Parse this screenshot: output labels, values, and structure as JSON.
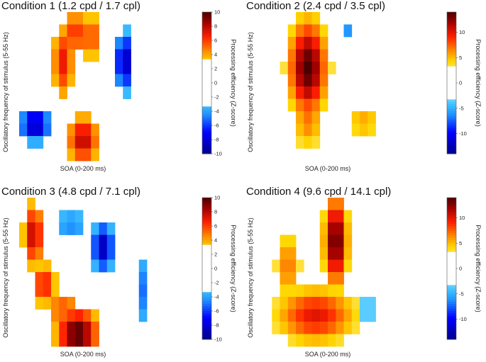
{
  "chart_data": [
    {
      "type": "heatmap",
      "title": "Condition 1 (1.2 cpd / 1.7 cpl)",
      "xlabel": "SOA (0-200 ms)",
      "ylabel": "Oscillatory frequency of stimulus (5-55 Hz)",
      "colorbar": {
        "label": "Processing efficiency (Z-score)",
        "ticks": [
          "10",
          "8",
          "6",
          "4",
          "2",
          "0",
          "-2",
          "-4",
          "-6",
          "-8",
          "-10"
        ],
        "min": -10,
        "max": 10,
        "threshold": 3.2
      },
      "grid": {
        "rows": 12,
        "cols": 16,
        "blobs": [
          {
            "r": 3.5,
            "c": 5,
            "rr": 3.5,
            "rc": 1.6,
            "v": 7
          },
          {
            "r": 1.2,
            "c": 6.5,
            "rr": 2.3,
            "rc": 1.8,
            "v": 6.5
          },
          {
            "r": 1.5,
            "c": 8.5,
            "rr": 2.3,
            "rc": 1.6,
            "v": 6
          },
          {
            "r": 9.8,
            "c": 7.5,
            "rr": 2.3,
            "rc": 2.3,
            "v": 8
          },
          {
            "r": 3.5,
            "c": 12.7,
            "rr": 2.7,
            "rc": 1.3,
            "v": -9
          },
          {
            "r": 8.6,
            "c": 1.5,
            "rr": 1.6,
            "rc": 2.2,
            "v": -9
          }
        ]
      }
    },
    {
      "type": "heatmap",
      "title": "Condition 2 (2.4 cpd / 3.5 cpl)",
      "xlabel": "SOA (0-200 ms)",
      "ylabel": "Oscillatory frequency of stimulus (5-55 Hz)",
      "colorbar": {
        "label": "Processing efficiency (Z-score)",
        "ticks": [
          "10",
          "5",
          "0",
          "-5",
          "-10"
        ],
        "min": -14,
        "max": 14,
        "threshold": 3.2
      },
      "grid": {
        "rows": 12,
        "cols": 16,
        "blobs": [
          {
            "r": 4,
            "c": 5,
            "rr": 4.2,
            "rc": 2.6,
            "v": 14
          },
          {
            "r": 8,
            "c": 5,
            "rr": 3,
            "rc": 2.2,
            "v": 7
          },
          {
            "r": 8.3,
            "c": 12,
            "rr": 1.8,
            "rc": 2.7,
            "v": 5.5
          },
          {
            "r": 1,
            "c": 10,
            "rr": 1.2,
            "rc": 1,
            "v": -6
          }
        ]
      }
    },
    {
      "type": "heatmap",
      "title": "Condition 3 (4.8 cpd / 7.1 cpl)",
      "xlabel": "SOA (0-200 ms)",
      "ylabel": "Oscillatory frequency of stimulus (5-55 Hz)",
      "colorbar": {
        "label": "Processing efficiency (Z-score)",
        "ticks": [
          "10",
          "8",
          "6",
          "4",
          "2",
          "0",
          "-2",
          "-4",
          "-6",
          "-8",
          "-10"
        ],
        "min": -10,
        "max": 10,
        "threshold": 3.2
      },
      "grid": {
        "rows": 12,
        "cols": 16,
        "blobs": [
          {
            "r": 2.5,
            "c": 1.3,
            "rr": 3,
            "rc": 1.5,
            "v": 8
          },
          {
            "r": 6.5,
            "c": 2.6,
            "rr": 2,
            "rc": 1.8,
            "v": 7
          },
          {
            "r": 10.5,
            "c": 6.8,
            "rr": 2.4,
            "rc": 3,
            "v": 10
          },
          {
            "r": 8.5,
            "c": 5,
            "rr": 1.4,
            "rc": 3,
            "v": 6
          },
          {
            "r": 1.6,
            "c": 6,
            "rr": 1.2,
            "rc": 3,
            "v": -5
          },
          {
            "r": 3.5,
            "c": 10,
            "rr": 2.2,
            "rc": 1.6,
            "v": -9
          },
          {
            "r": 7,
            "c": 15.3,
            "rr": 3.8,
            "rc": 1.1,
            "v": -5.5
          }
        ]
      }
    },
    {
      "type": "heatmap",
      "title": "Condition 4 (9.6 cpd / 14.1 cpl)",
      "xlabel": "SOA (0-200 ms)",
      "ylabel": "Oscillatory frequency of stimulus (5-55 Hz)",
      "colorbar": {
        "label": "Processing efficiency (Z-score)",
        "ticks": [
          "10",
          "5",
          "0",
          "-5",
          "-10"
        ],
        "min": -14,
        "max": 14,
        "threshold": 3.2
      },
      "grid": {
        "rows": 12,
        "cols": 16,
        "blobs": [
          {
            "r": 3,
            "c": 8.5,
            "rr": 4,
            "rc": 1.6,
            "v": 14
          },
          {
            "r": 9,
            "c": 6,
            "rr": 2.5,
            "rc": 5.5,
            "v": 10
          },
          {
            "r": 5,
            "c": 2.5,
            "rr": 3.2,
            "rc": 1.8,
            "v": 7
          },
          {
            "r": 8.5,
            "c": 12.5,
            "rr": 1.3,
            "rc": 0.9,
            "v": -6
          }
        ]
      }
    }
  ],
  "colors": {
    "ramp": [
      "#00008b",
      "#0000ff",
      "#1e90ff",
      "#40c4ff",
      "#ffffff",
      "#ffd700",
      "#ff8c00",
      "#ff2000",
      "#a00000",
      "#4a0000"
    ]
  }
}
